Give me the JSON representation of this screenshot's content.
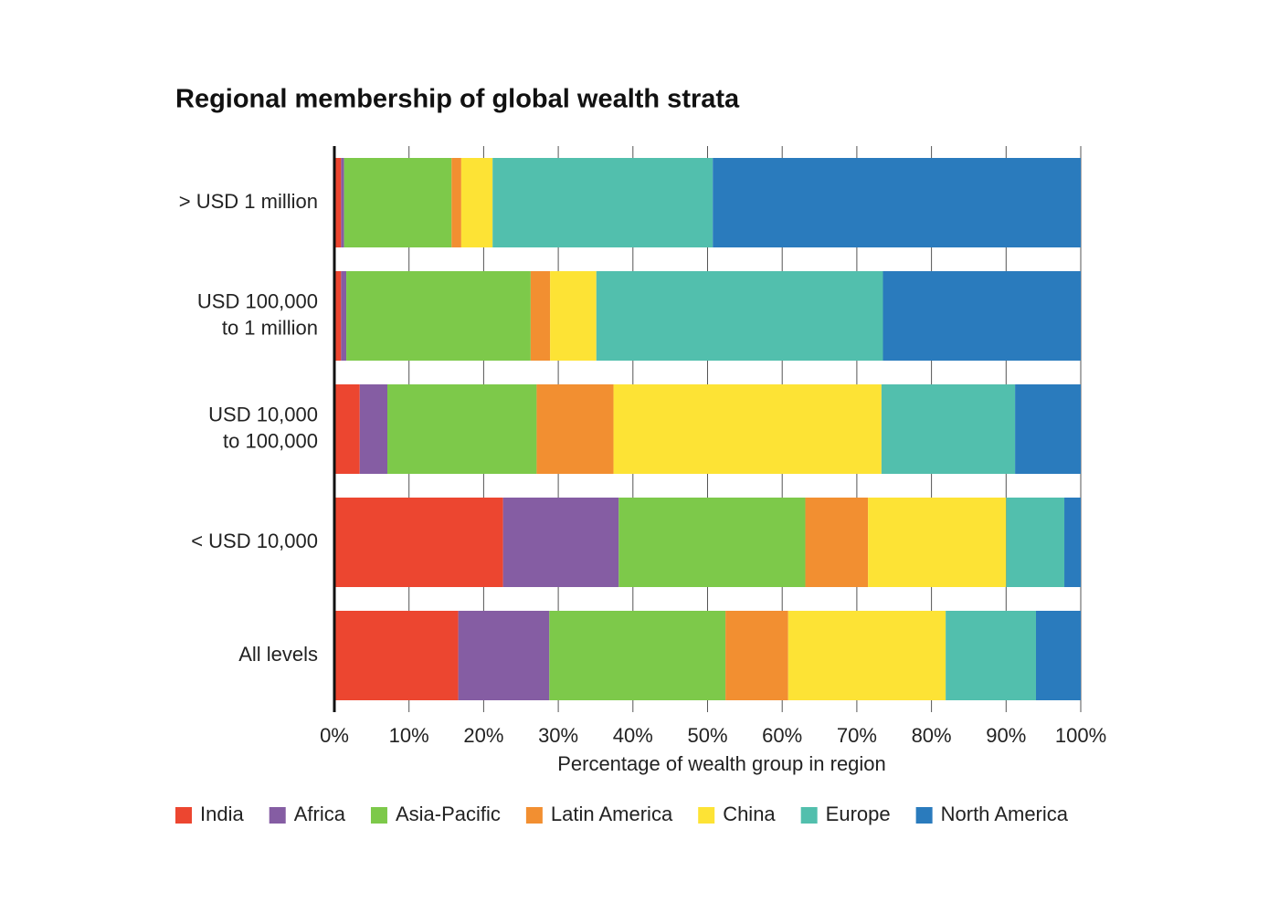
{
  "chart_data": {
    "type": "stacked-bar-horizontal",
    "title": "Regional membership of global wealth strata",
    "x_label": "Percentage of wealth group in region",
    "categories": [
      [
        "> USD 1 million"
      ],
      [
        "USD 100,000",
        "to 1 million"
      ],
      [
        "USD 10,000",
        "to 100,000"
      ],
      [
        "< USD 10,000"
      ],
      [
        "All levels"
      ]
    ],
    "series": [
      {
        "name": "India",
        "color": "#ec4630",
        "values": [
          0.9,
          0.9,
          3.4,
          22.6,
          16.6
        ]
      },
      {
        "name": "Africa",
        "color": "#855da3",
        "values": [
          0.4,
          0.7,
          3.7,
          15.5,
          12.2
        ]
      },
      {
        "name": "Asia-Pacific",
        "color": "#7dc94a",
        "values": [
          14.4,
          24.7,
          20.0,
          25.0,
          23.6
        ]
      },
      {
        "name": "Latin America",
        "color": "#f28f31",
        "values": [
          1.3,
          2.6,
          10.3,
          8.4,
          8.4
        ]
      },
      {
        "name": "China",
        "color": "#fde335",
        "values": [
          4.2,
          6.2,
          35.9,
          18.5,
          21.1
        ]
      },
      {
        "name": "Europe",
        "color": "#52bfad",
        "values": [
          29.5,
          38.4,
          17.9,
          7.8,
          12.1
        ]
      },
      {
        "name": "North America",
        "color": "#2a7bbd",
        "values": [
          49.3,
          26.5,
          8.8,
          2.2,
          6.0
        ]
      }
    ],
    "xlim": [
      0,
      100
    ],
    "xticks": [
      {
        "value": 0,
        "label": "0%"
      },
      {
        "value": 10,
        "label": "10%"
      },
      {
        "value": 20,
        "label": "20%"
      },
      {
        "value": 30,
        "label": "30%"
      },
      {
        "value": 40,
        "label": "40%"
      },
      {
        "value": 50,
        "label": "50%"
      },
      {
        "value": 60,
        "label": "60%"
      },
      {
        "value": 70,
        "label": "70%"
      },
      {
        "value": 80,
        "label": "80%"
      },
      {
        "value": 90,
        "label": "90%"
      },
      {
        "value": 100,
        "label": "100%"
      }
    ],
    "grid": true,
    "legend": "bottom"
  }
}
